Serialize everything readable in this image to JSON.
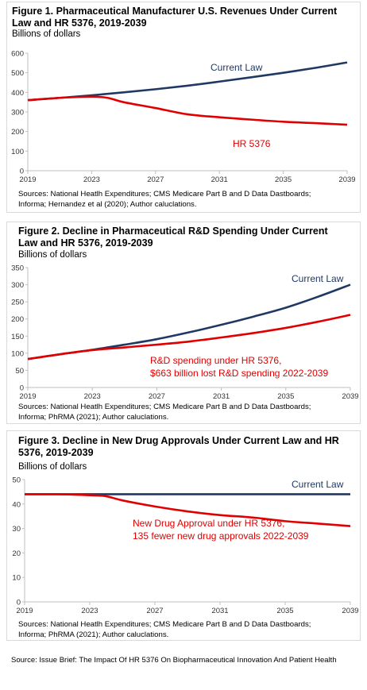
{
  "charts": [
    {
      "title_line1": "Figure 1. Pharmaceutical Manufacturer U.S. Revenues Under Current",
      "title_line2": "Law and HR 5376, 2019-2039",
      "ylabel": "Billions of dollars",
      "source_line1": "Sources: National Heatlh Expenditures; CMS Medicare Part B and D Data Dastboards;",
      "source_line2": "Informa; Hernandez et al (2020); Author caluclations.",
      "annotations": [
        {
          "lines": [
            "Current Law"
          ],
          "color": "#1f3864"
        },
        {
          "lines": [
            "HR 5376"
          ],
          "color": "#e00000"
        }
      ]
    },
    {
      "title_line1": "Figure 2. Decline in Pharmaceutical R&D Spending Under Current",
      "title_line2": "Law and HR 5376, 2019-2039",
      "ylabel": "Billions of dollars",
      "source_line1": "Sources: National Heatlh Expenditures; CMS Medicare Part B and D Data Dastboards;",
      "source_line2": "Informa; PhRMA (2021); Author caluclations.",
      "annotations": [
        {
          "lines": [
            "Current Law"
          ],
          "color": "#1f3864"
        },
        {
          "lines": [
            "R&D spending under HR 5376,",
            "$663 billion lost R&D spending 2022-2039"
          ],
          "color": "#e00000"
        }
      ]
    },
    {
      "title_line1": "Figure 3. Decline in New Drug Approvals Under Current Law and HR",
      "title_line2": "5376, 2019-2039",
      "ylabel": "Billions of dollars",
      "source_line1": "Sources: National Heatlh Expenditures; CMS Medicare Part B and D Data Dastboards;",
      "source_line2": "Informa; PhRMA (2021); Author caluclations.",
      "annotations": [
        {
          "lines": [
            "Current Law"
          ],
          "color": "#1f3864"
        },
        {
          "lines": [
            "New Drug Approval under HR 5376,",
            "135 fewer new drug approvals 2022-2039"
          ],
          "color": "#e00000"
        }
      ]
    }
  ],
  "footer": "Source: Issue Brief: The Impact Of HR 5376 On Biopharmaceutical Innovation And Patient Health",
  "chart_data": [
    {
      "type": "line",
      "title": "Figure 1. Pharmaceutical Manufacturer U.S. Revenues Under Current Law and HR 5376, 2019-2039",
      "ylabel": "Billions of dollars",
      "xlabel": "",
      "xlim": [
        2019,
        2039
      ],
      "ylim": [
        0,
        600
      ],
      "xticks": [
        2019,
        2023,
        2027,
        2031,
        2035,
        2039
      ],
      "yticks": [
        0,
        100,
        200,
        300,
        400,
        500,
        600
      ],
      "grid": false,
      "series": [
        {
          "name": "Current Law",
          "color": "#1f3864",
          "x": [
            2019,
            2021,
            2023,
            2025,
            2027,
            2029,
            2031,
            2033,
            2035,
            2037,
            2039
          ],
          "y": [
            360,
            372,
            385,
            400,
            416,
            434,
            455,
            477,
            500,
            525,
            553
          ]
        },
        {
          "name": "HR 5376",
          "color": "#e00000",
          "x": [
            2019,
            2021,
            2023,
            2024,
            2025,
            2027,
            2029,
            2031,
            2033,
            2035,
            2037,
            2039
          ],
          "y": [
            360,
            372,
            378,
            372,
            350,
            320,
            288,
            273,
            261,
            250,
            243,
            235
          ]
        }
      ]
    },
    {
      "type": "line",
      "title": "Figure 2. Decline in Pharmaceutical R&D Spending Under Current Law and HR 5376, 2019-2039",
      "ylabel": "Billions of dollars",
      "xlabel": "",
      "xlim": [
        2019,
        2039
      ],
      "ylim": [
        0,
        350
      ],
      "xticks": [
        2019,
        2023,
        2027,
        2031,
        2035,
        2039
      ],
      "yticks": [
        0,
        50,
        100,
        150,
        200,
        250,
        300,
        350
      ],
      "grid": false,
      "series": [
        {
          "name": "Current Law",
          "color": "#1f3864",
          "x": [
            2019,
            2021,
            2023,
            2025,
            2027,
            2029,
            2031,
            2033,
            2035,
            2037,
            2039
          ],
          "y": [
            83,
            97,
            110,
            125,
            141,
            161,
            183,
            207,
            233,
            265,
            300
          ]
        },
        {
          "name": "R&D spending under HR 5376",
          "color": "#e00000",
          "x": [
            2019,
            2021,
            2023,
            2025,
            2027,
            2029,
            2031,
            2033,
            2035,
            2037,
            2039
          ],
          "y": [
            83,
            97,
            109,
            117,
            125,
            134,
            146,
            159,
            174,
            192,
            212
          ]
        }
      ]
    },
    {
      "type": "line",
      "title": "Figure 3. Decline in New Drug Approvals Under Current Law and HR 5376, 2019-2039",
      "ylabel": "Billions of dollars",
      "xlabel": "",
      "xlim": [
        2019,
        2039
      ],
      "ylim": [
        0,
        50
      ],
      "xticks": [
        2019,
        2023,
        2027,
        2031,
        2035,
        2039
      ],
      "yticks": [
        0,
        10,
        20,
        30,
        40,
        50
      ],
      "grid": false,
      "series": [
        {
          "name": "Current Law",
          "color": "#1f3864",
          "x": [
            2019,
            2039
          ],
          "y": [
            44,
            44
          ]
        },
        {
          "name": "New Drug Approval under HR 5376",
          "color": "#e00000",
          "x": [
            2019,
            2021,
            2023,
            2024,
            2025,
            2027,
            2029,
            2031,
            2033,
            2035,
            2037,
            2039
          ],
          "y": [
            44,
            44,
            43.6,
            43.2,
            41.5,
            39,
            37,
            35.5,
            34.5,
            33,
            32,
            31
          ]
        }
      ]
    }
  ]
}
